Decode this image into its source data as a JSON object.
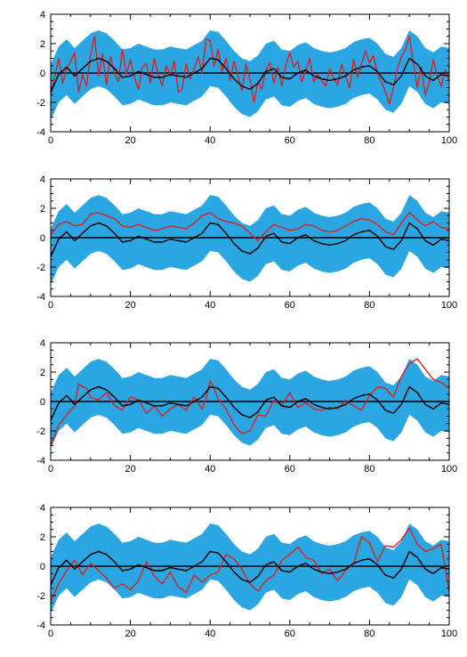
{
  "figure": {
    "description_free": true
  },
  "colors": {
    "band": "#2aa6e3",
    "mean": "#000000",
    "sample": "#dd2020",
    "zero_line": "#000000",
    "axes": "#000000"
  },
  "chart_data": [
    {
      "type": "line",
      "panel": 1,
      "xlim": [
        0,
        100
      ],
      "ylim": [
        -4,
        4
      ],
      "xticks": [
        0,
        20,
        40,
        60,
        80,
        100
      ],
      "yticks": [
        -4,
        -2,
        0,
        2,
        4
      ],
      "x_tick_labels": [
        "0",
        "20",
        "40",
        "60",
        "80",
        "100"
      ],
      "y_tick_labels": [
        "-4",
        "-2",
        "0",
        "2",
        "4"
      ],
      "band_halfwidth": 1.9,
      "sample": {
        "x": [
          0,
          1,
          2,
          3,
          4,
          5,
          6,
          7,
          8,
          9,
          10,
          11,
          12,
          13,
          14,
          15,
          16,
          17,
          18,
          19,
          20,
          21,
          22,
          23,
          24,
          25,
          26,
          27,
          28,
          29,
          30,
          31,
          32,
          33,
          34,
          35,
          36,
          37,
          38,
          39,
          40,
          41,
          42,
          43,
          44,
          45,
          46,
          47,
          48,
          49,
          50,
          51,
          52,
          53,
          54,
          55,
          56,
          57,
          58,
          59,
          60,
          61,
          62,
          63,
          64,
          65,
          66,
          67,
          68,
          69,
          70,
          71,
          72,
          73,
          74,
          75,
          76,
          77,
          78,
          79,
          80,
          81,
          82,
          83,
          84,
          85,
          86,
          87,
          88,
          89,
          90,
          91,
          92,
          93,
          94,
          95,
          96,
          97,
          98,
          99,
          100
        ],
        "y": [
          -1.5,
          -0.3,
          1.0,
          -0.7,
          0.3,
          0.8,
          1.4,
          -1.3,
          -0.1,
          -0.9,
          1.2,
          2.5,
          -0.2,
          1.3,
          -0.8,
          1.1,
          0.0,
          -0.6,
          1.6,
          -0.1,
          0.9,
          -0.3,
          -1.1,
          0.4,
          0.6,
          -0.7,
          1.0,
          -0.1,
          -0.9,
          0.5,
          -0.2,
          0.8,
          -1.3,
          -1.1,
          0.6,
          -0.4,
          0.3,
          1.1,
          0.0,
          2.3,
          2.2,
          0.5,
          1.6,
          0.1,
          1.0,
          -0.5,
          0.8,
          -0.2,
          -1.2,
          0.6,
          -0.4,
          -2.0,
          -0.6,
          -1.1,
          0.2,
          0.7,
          -0.7,
          0.4,
          -0.9,
          0.5,
          1.4,
          0.4,
          0.8,
          -0.6,
          0.2,
          1.0,
          -0.6,
          -0.1,
          -0.5,
          -0.9,
          0.3,
          -0.4,
          -0.8,
          0.6,
          -0.2,
          -1.0,
          0.9,
          -0.3,
          0.6,
          1.5,
          0.7,
          1.2,
          -0.1,
          -0.6,
          -1.3,
          -2.1,
          -1.0,
          0.3,
          1.1,
          1.6,
          2.5,
          0.7,
          -1.0,
          0.4,
          -1.5,
          -0.6,
          0.9,
          -0.2,
          -0.9,
          0.2,
          -0.5
        ]
      }
    },
    {
      "type": "line",
      "panel": 2,
      "xlim": [
        0,
        100
      ],
      "ylim": [
        -4,
        4
      ],
      "xticks": [
        0,
        20,
        40,
        60,
        80,
        100
      ],
      "yticks": [
        -4,
        -2,
        0,
        2,
        4
      ],
      "x_tick_labels": [
        "0",
        "20",
        "40",
        "60",
        "80",
        "100"
      ],
      "y_tick_labels": [
        "-4",
        "-2",
        "0",
        "2",
        "4"
      ],
      "band_halfwidth": 1.9,
      "sample": {
        "x": [
          0,
          2,
          4,
          6,
          8,
          10,
          12,
          14,
          16,
          18,
          20,
          22,
          24,
          26,
          28,
          30,
          32,
          34,
          36,
          38,
          40,
          42,
          44,
          46,
          48,
          50,
          52,
          54,
          56,
          58,
          60,
          62,
          64,
          66,
          68,
          70,
          72,
          74,
          76,
          78,
          80,
          82,
          84,
          86,
          88,
          90,
          92,
          94,
          96,
          98,
          100
        ],
        "y": [
          0.2,
          0.9,
          1.1,
          0.8,
          0.9,
          1.6,
          1.7,
          1.5,
          1.3,
          0.8,
          0.7,
          0.9,
          0.7,
          0.5,
          0.6,
          0.8,
          0.7,
          0.6,
          1.0,
          1.5,
          1.7,
          1.3,
          1.1,
          1.0,
          0.8,
          0.3,
          -0.2,
          0.4,
          0.9,
          0.7,
          0.5,
          0.6,
          0.9,
          0.8,
          0.5,
          0.4,
          0.5,
          0.8,
          1.1,
          1.3,
          1.2,
          0.9,
          0.4,
          0.2,
          1.0,
          1.7,
          1.2,
          0.8,
          1.1,
          0.7,
          0.6
        ]
      }
    },
    {
      "type": "line",
      "panel": 3,
      "xlim": [
        0,
        100
      ],
      "ylim": [
        -4,
        4
      ],
      "xticks": [
        0,
        20,
        40,
        60,
        80,
        100
      ],
      "yticks": [
        -4,
        -2,
        0,
        2,
        4
      ],
      "x_tick_labels": [
        "0",
        "20",
        "40",
        "60",
        "80",
        "100"
      ],
      "y_tick_labels": [
        "-4",
        "-2",
        "0",
        "2",
        "4"
      ],
      "band_halfwidth": 1.9,
      "sample": {
        "x": [
          0,
          2,
          4,
          6,
          7,
          8,
          9,
          10,
          12,
          14,
          16,
          18,
          20,
          22,
          24,
          26,
          28,
          30,
          32,
          34,
          36,
          38,
          39,
          40,
          41,
          42,
          44,
          46,
          48,
          50,
          52,
          54,
          56,
          58,
          60,
          62,
          64,
          66,
          68,
          70,
          72,
          74,
          76,
          78,
          80,
          82,
          84,
          86,
          88,
          90,
          92,
          94,
          96,
          98,
          100
        ],
        "y": [
          -3.0,
          -1.6,
          -0.9,
          -0.3,
          1.2,
          1.0,
          0.9,
          0.3,
          0.1,
          0.6,
          -0.3,
          -0.6,
          0.3,
          0.1,
          -0.8,
          -0.3,
          -1.0,
          -0.5,
          -0.2,
          -0.6,
          0.3,
          -0.5,
          0.2,
          1.4,
          0.9,
          0.2,
          -0.5,
          -1.6,
          -2.2,
          -2.0,
          -0.9,
          -1.0,
          0.1,
          -0.3,
          0.6,
          -0.4,
          -0.1,
          -0.5,
          -0.6,
          -0.4,
          -0.5,
          0.1,
          -0.3,
          -0.6,
          0.4,
          1.0,
          0.9,
          0.3,
          1.7,
          2.6,
          2.9,
          2.2,
          1.5,
          1.3,
          0.9
        ]
      }
    },
    {
      "type": "line",
      "panel": 4,
      "xlim": [
        0,
        100
      ],
      "ylim": [
        -4,
        4
      ],
      "xticks": [
        0,
        20,
        40,
        60,
        80,
        100
      ],
      "yticks": [
        -4,
        -2,
        0,
        2,
        4
      ],
      "x_tick_labels": [
        "0",
        "20",
        "40",
        "60",
        "80",
        "100"
      ],
      "y_tick_labels": [
        "-4",
        "-2",
        "0",
        "2",
        "4"
      ],
      "band_halfwidth": 1.9,
      "sample": {
        "x": [
          0,
          2,
          4,
          6,
          8,
          10,
          12,
          14,
          16,
          18,
          20,
          22,
          24,
          26,
          28,
          30,
          32,
          34,
          36,
          38,
          40,
          42,
          44,
          46,
          48,
          50,
          52,
          54,
          56,
          58,
          60,
          62,
          64,
          66,
          68,
          70,
          72,
          74,
          76,
          78,
          80,
          82,
          84,
          86,
          88,
          90,
          92,
          94,
          96,
          98,
          100
        ],
        "y": [
          -2.4,
          -1.2,
          -0.3,
          0.4,
          -0.6,
          0.2,
          -0.3,
          -0.8,
          -1.5,
          -1.2,
          -1.6,
          -1.0,
          0.3,
          -0.7,
          -1.2,
          -0.4,
          -1.4,
          -1.8,
          -0.6,
          -1.1,
          -0.6,
          -0.4,
          0.8,
          0.5,
          -0.2,
          -1.2,
          -1.7,
          -1.0,
          -0.6,
          0.4,
          0.8,
          1.3,
          0.6,
          0.4,
          -0.5,
          -0.2,
          -1.0,
          -0.3,
          0.2,
          2.0,
          1.6,
          0.3,
          1.4,
          1.3,
          1.8,
          2.6,
          1.5,
          1.0,
          1.2,
          1.5,
          -1.7
        ]
      }
    }
  ],
  "shared_model": {
    "mean": {
      "x": [
        0,
        2,
        4,
        6,
        8,
        10,
        12,
        14,
        16,
        18,
        20,
        22,
        24,
        26,
        28,
        30,
        32,
        34,
        36,
        38,
        40,
        42,
        44,
        46,
        48,
        50,
        52,
        54,
        56,
        58,
        60,
        62,
        64,
        66,
        68,
        70,
        72,
        74,
        76,
        78,
        80,
        82,
        84,
        86,
        88,
        90,
        92,
        94,
        96,
        98,
        100
      ],
      "y": [
        -1.3,
        -0.1,
        0.4,
        -0.2,
        0.3,
        0.8,
        1.0,
        0.8,
        0.3,
        -0.3,
        -0.2,
        0.1,
        -0.1,
        -0.3,
        -0.3,
        -0.1,
        -0.2,
        -0.3,
        0.0,
        0.3,
        1.0,
        0.9,
        0.3,
        -0.4,
        -0.9,
        -1.1,
        -0.7,
        0.1,
        0.3,
        -0.3,
        -0.4,
        0.0,
        0.2,
        -0.2,
        -0.4,
        -0.5,
        -0.4,
        -0.2,
        0.2,
        0.4,
        0.5,
        0.1,
        -0.6,
        -0.8,
        -0.2,
        1.0,
        0.6,
        -0.2,
        -0.5,
        -0.1,
        -0.2
      ]
    }
  }
}
